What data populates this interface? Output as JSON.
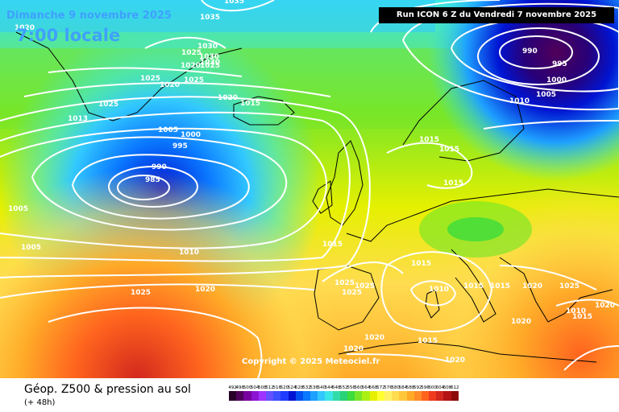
{
  "title": {
    "date": "Dimanche 9 novembre 2025",
    "time": "7:00 locale"
  },
  "run_info": "Run ICON 6 Z du Vendredi 7 novembre 2025",
  "copyright": "Copyright © 2025 Meteociel.fr",
  "legend": {
    "title": "Géop. Z500 & pression au sol",
    "subtitle": "(+ 48h)",
    "scale_values": [
      "492",
      "496",
      "500",
      "504",
      "508",
      "512",
      "516",
      "520",
      "524",
      "528",
      "532",
      "536",
      "540",
      "544",
      "548",
      "552",
      "556",
      "560",
      "564",
      "568",
      "572",
      "576",
      "580",
      "584",
      "588",
      "592",
      "596",
      "600",
      "604",
      "608",
      "612"
    ],
    "scale_colors": [
      "#280028",
      "#50005a",
      "#7800a0",
      "#8c14d2",
      "#a032ff",
      "#6450ff",
      "#3c50ff",
      "#1e3cff",
      "#0014d2",
      "#0050f0",
      "#0a78ff",
      "#1ea0ff",
      "#32c8ff",
      "#3ce6e6",
      "#32dcaa",
      "#28d278",
      "#3cdc3c",
      "#78e628",
      "#aaf014",
      "#e6f000",
      "#ffff32",
      "#fff064",
      "#ffdc50",
      "#ffc83c",
      "#ffaa28",
      "#ff8c28",
      "#ff641e",
      "#f03c1e",
      "#d2281e",
      "#b41414",
      "#8c0a0a"
    ]
  },
  "isobar_labels": [
    "1035",
    "1035",
    "1020",
    "1030",
    "1030",
    "1030",
    "1025",
    "1020",
    "1025",
    "1025",
    "1020",
    "1025",
    "1025",
    "1020",
    "1015",
    "1013",
    "1005",
    "1000",
    "995",
    "990",
    "985",
    "990",
    "995",
    "1000",
    "1005",
    "1010",
    "1015",
    "1015",
    "1015",
    "1015",
    "1010",
    "1015",
    "1025",
    "1025",
    "1010",
    "1015",
    "1015",
    "1020",
    "1025",
    "1025",
    "1020",
    "1020",
    "1020",
    "1010",
    "1015",
    "1020",
    "1015",
    "1020",
    "1005",
    "1005",
    "1025",
    "1020"
  ]
}
